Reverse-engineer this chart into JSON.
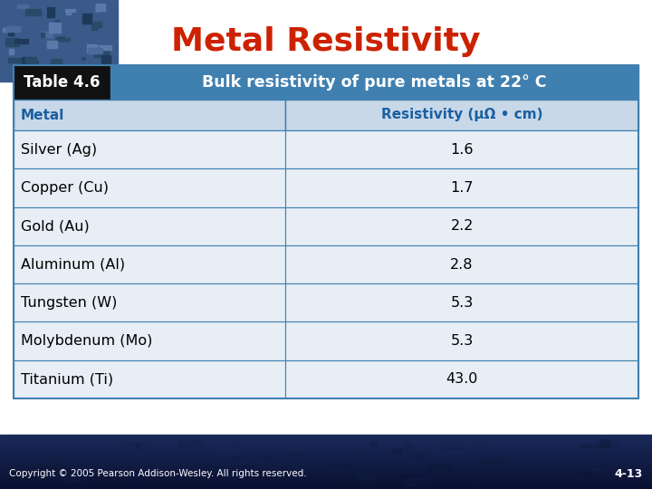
{
  "title": "Metal Resistivity",
  "title_color": "#cc2200",
  "title_fontsize": 26,
  "table_label": "Table 4.6",
  "table_subtitle": "Bulk resistivity of pure metals at 22° C",
  "col_headers": [
    "Metal",
    "Resistivity (μΩ • cm)"
  ],
  "rows": [
    [
      "Silver (Ag)",
      "1.6"
    ],
    [
      "Copper (Cu)",
      "1.7"
    ],
    [
      "Gold (Au)",
      "2.2"
    ],
    [
      "Aluminum (Al)",
      "2.8"
    ],
    [
      "Tungsten (W)",
      "5.3"
    ],
    [
      "Molybdenum (Mo)",
      "5.3"
    ],
    [
      "Titanium (Ti)",
      "43.0"
    ]
  ],
  "header_bg_black": "#111111",
  "header_bg_blue": "#4080b0",
  "col_header_bg": "#c8d8e8",
  "col_header_text": "#1a5fa0",
  "row_bg": "#e8eef5",
  "border_color": "#4080b0",
  "footer_text": "Copyright © 2005 Pearson Addison-Wesley. All rights reserved.",
  "footer_page": "4-13",
  "main_bg": "#ffffff",
  "footer_dark": "#1a2a4a",
  "footer_mid": "#2a4a7a",
  "corner_color": "#3a5a8a"
}
